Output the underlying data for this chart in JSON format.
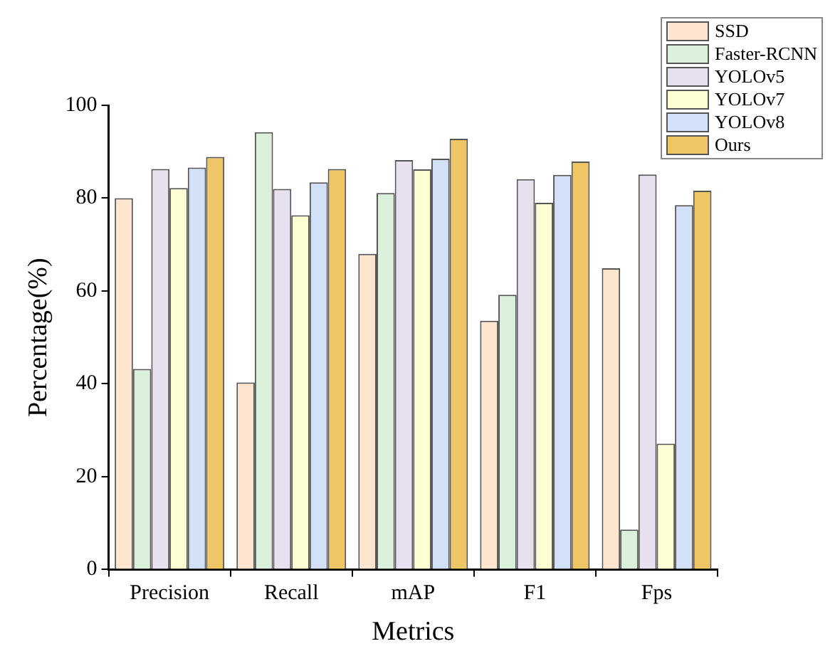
{
  "chart_data": {
    "type": "bar",
    "xlabel": "Metrics",
    "ylabel": "Percentage(%)",
    "categories": [
      "Precision",
      "Recall",
      "mAP",
      "F1",
      "Fps"
    ],
    "series": [
      {
        "name": "SSD",
        "color": "#fde5d0",
        "values": [
          80,
          40.3,
          68,
          53.6,
          64.9
        ]
      },
      {
        "name": "Faster-RCNN",
        "color": "#dbf0db",
        "values": [
          43.2,
          94.2,
          81.1,
          59.2,
          8.6
        ]
      },
      {
        "name": "YOLOv5",
        "color": "#e6e0ef",
        "values": [
          86.3,
          82,
          88.2,
          84.1,
          85.1
        ]
      },
      {
        "name": "YOLOv7",
        "color": "#fefed3",
        "values": [
          82.2,
          76.3,
          86.2,
          79,
          27.1
        ]
      },
      {
        "name": "YOLOv8",
        "color": "#d3e1f8",
        "values": [
          86.6,
          83.4,
          88.5,
          85,
          78.5
        ]
      },
      {
        "name": "Ours",
        "color": "#eec665",
        "values": [
          88.9,
          86.3,
          92.8,
          87.9,
          81.6
        ]
      }
    ],
    "ylim": [
      0,
      100
    ],
    "yticks": [
      0,
      20,
      40,
      60,
      80,
      100
    ],
    "grid": false,
    "legend": "top right"
  }
}
